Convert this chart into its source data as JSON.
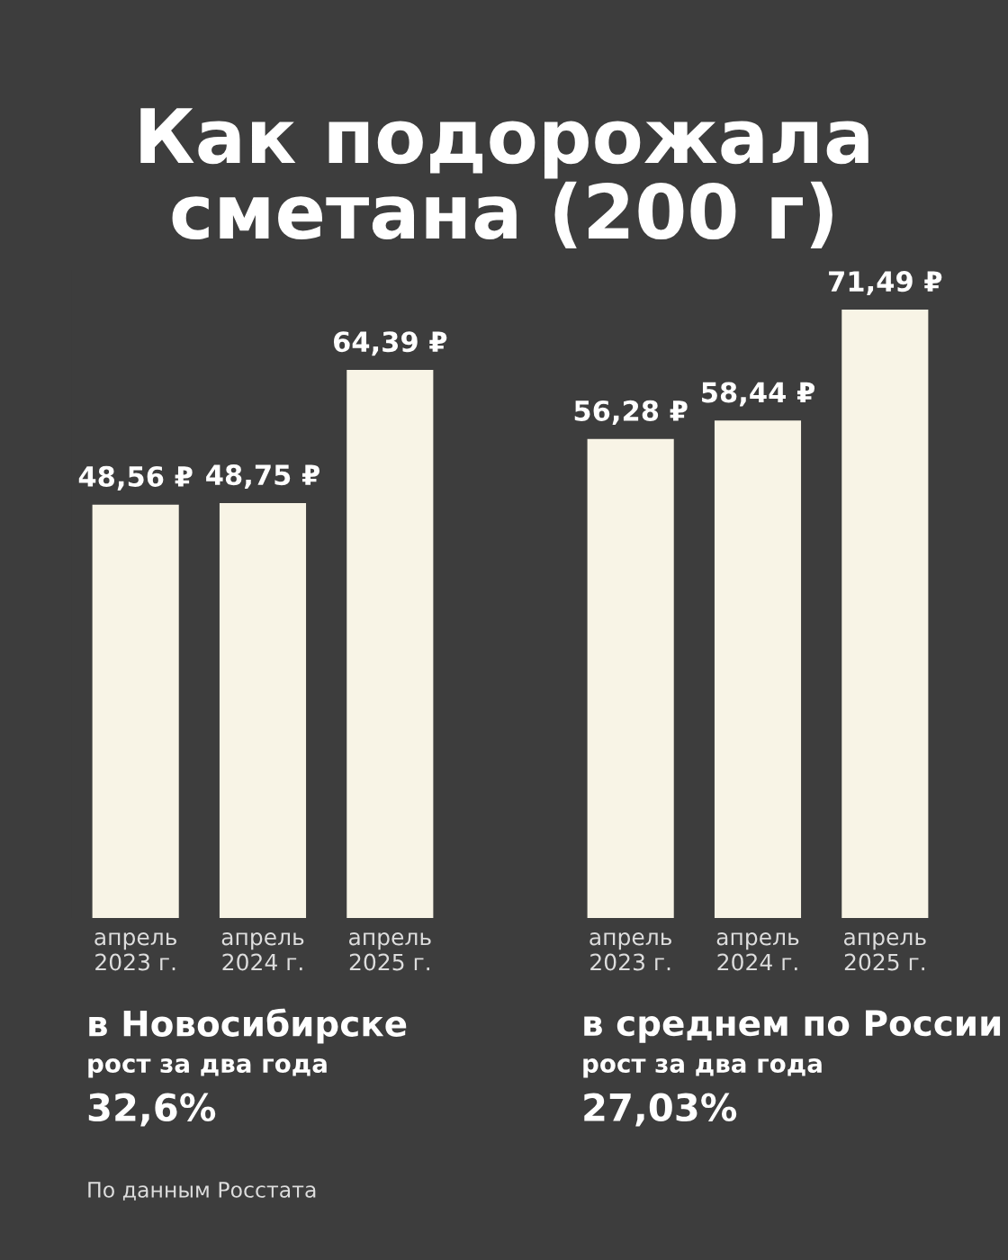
{
  "chart_data": [
    {
      "type": "bar",
      "title": "в Новосибирске",
      "subtitle": "рост за два года",
      "categories": [
        "апрель\n2023 г.",
        "апрель\n2024 г.",
        "апрель\n2025 г."
      ],
      "values": [
        48.56,
        48.75,
        64.39
      ],
      "value_labels": [
        "48,56 ₽",
        "48,75 ₽",
        "64,39 ₽"
      ],
      "color": "#f8f4e6",
      "annotations": [
        "Как подорожала\nсметана (200 г)",
        "32,6%",
        "По данным Росстата"
      ]
    },
    {
      "type": "bar",
      "title": "в среднем по России",
      "subtitle": "рост за два года",
      "categories": [
        "апрель\n2023 г.",
        "апрель\n2024 г.",
        "апрель\n2025 г."
      ],
      "values": [
        56.28,
        58.44,
        71.49
      ],
      "value_labels": [
        "56,28 ₽",
        "58,44 ₽",
        "71,49 ₽"
      ],
      "color": "#f8f4e6",
      "annotations": [
        "27,03%"
      ]
    }
  ]
}
